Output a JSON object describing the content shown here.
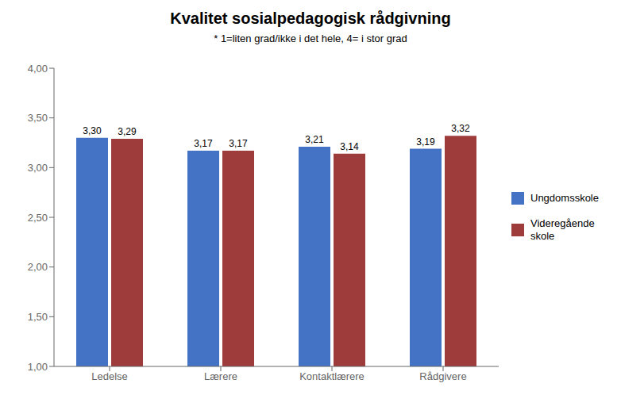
{
  "chart_data": {
    "type": "bar",
    "title": "Kvalitet sosialpedagogisk rådgivning",
    "subtitle": "* 1=liten grad/ikke i det hele, 4= i stor grad",
    "categories": [
      "Ledelse",
      "Lærere",
      "Kontaktlærere",
      "Rådgivere"
    ],
    "series": [
      {
        "name": "Ungdomsskole",
        "color": "#4472C4",
        "values": [
          3.3,
          3.17,
          3.21,
          3.19
        ],
        "value_labels": [
          "3,30",
          "3,17",
          "3,21",
          "3,19"
        ]
      },
      {
        "name": "Videregående\nskole",
        "color": "#9E3B3B",
        "values": [
          3.29,
          3.17,
          3.14,
          3.32
        ],
        "value_labels": [
          "3,29",
          "3,17",
          "3,14",
          "3,32"
        ]
      }
    ],
    "ylim": [
      1.0,
      4.0
    ],
    "yticks": [
      {
        "value": 1.0,
        "label": "1,00"
      },
      {
        "value": 1.5,
        "label": "1,50"
      },
      {
        "value": 2.0,
        "label": "2,00"
      },
      {
        "value": 2.5,
        "label": "2,50"
      },
      {
        "value": 3.0,
        "label": "3,00"
      },
      {
        "value": 3.5,
        "label": "3,50"
      },
      {
        "value": 4.0,
        "label": "4,00"
      }
    ],
    "grid": false,
    "legend": "right",
    "data_labels": true
  }
}
